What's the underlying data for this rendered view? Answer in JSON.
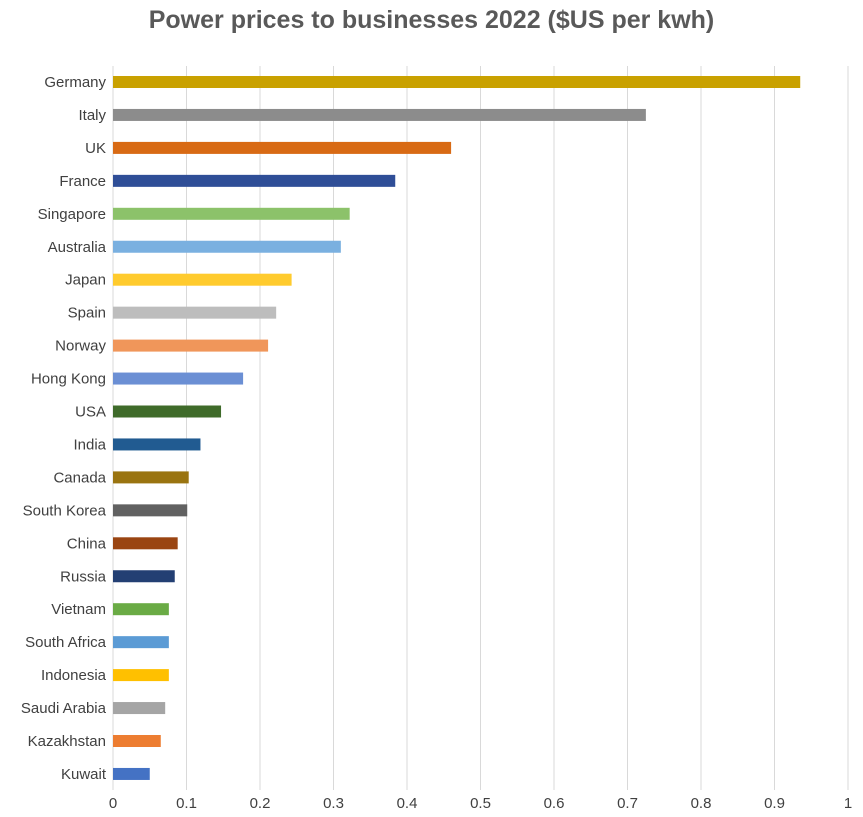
{
  "chart_data": {
    "type": "bar",
    "orientation": "horizontal",
    "title": "Power prices to businesses 2022 ($US per kwh)",
    "xlabel": "",
    "ylabel": "",
    "xlim": [
      0,
      1
    ],
    "x_ticks": [
      "0",
      "0.1",
      "0.2",
      "0.3",
      "0.4",
      "0.5",
      "0.6",
      "0.7",
      "0.8",
      "0.9",
      "1"
    ],
    "grid": "vertical",
    "legend": "none",
    "categories": [
      "Germany",
      "Italy",
      "UK",
      "France",
      "Singapore",
      "Australia",
      "Japan",
      "Spain",
      "Norway",
      "Hong Kong",
      "USA",
      "India",
      "Canada",
      "South Korea",
      "China",
      "Russia",
      "Vietnam",
      "South Africa",
      "Indonesia",
      "Saudi Arabia",
      "Kazakhstan",
      "Kuwait"
    ],
    "values": [
      0.935,
      0.725,
      0.46,
      0.384,
      0.322,
      0.31,
      0.243,
      0.222,
      0.211,
      0.177,
      0.147,
      0.119,
      0.103,
      0.101,
      0.088,
      0.084,
      0.076,
      0.076,
      0.076,
      0.071,
      0.065,
      0.05
    ],
    "colors": [
      "#c9a100",
      "#8c8c8c",
      "#d86a14",
      "#2f4e97",
      "#8cc26a",
      "#7ab0e0",
      "#ffcb2e",
      "#bdbdbd",
      "#f0965a",
      "#6b8fd4",
      "#3f6b2a",
      "#215b91",
      "#9a7410",
      "#616161",
      "#9a4512",
      "#233f73",
      "#6aab45",
      "#5b9bd5",
      "#ffc000",
      "#a5a5a5",
      "#ed7d31",
      "#4472c4"
    ]
  }
}
